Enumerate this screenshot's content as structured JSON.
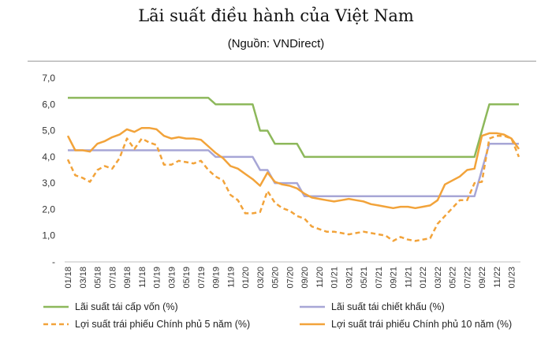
{
  "chart_data": {
    "type": "line",
    "title": "Lãi suất điều hành của Việt Nam",
    "subtitle": "(Nguồn: VNDirect)",
    "xlabel": "",
    "ylabel": "",
    "ylim": [
      0,
      7
    ],
    "y_ticks": [
      "-",
      "1,0",
      "2,0",
      "3,0",
      "4,0",
      "5,0",
      "6,0",
      "7,0"
    ],
    "grid": false,
    "legend": "bottom",
    "x_tick_labels": [
      "01/18",
      "03/18",
      "05/18",
      "07/18",
      "09/18",
      "11/18",
      "01/19",
      "03/19",
      "05/19",
      "07/19",
      "09/19",
      "11/19",
      "01/20",
      "03/20",
      "05/20",
      "07/20",
      "09/20",
      "11/20",
      "01/21",
      "03/21",
      "05/21",
      "07/21",
      "09/21",
      "11/21",
      "01/22",
      "03/22",
      "05/22",
      "07/22",
      "09/22",
      "11/22",
      "01/23"
    ],
    "x_start": "01/18",
    "x_end": "02/23",
    "series": [
      {
        "name": "Lãi suất tái cấp vốn (%)",
        "color": "#8db85b",
        "dash": "solid",
        "points": [
          [
            "01/18",
            6.25
          ],
          [
            "06/18",
            6.25
          ],
          [
            "12/18",
            6.25
          ],
          [
            "06/19",
            6.25
          ],
          [
            "08/19",
            6.25
          ],
          [
            "09/19",
            6.0
          ],
          [
            "12/19",
            6.0
          ],
          [
            "02/20",
            6.0
          ],
          [
            "03/20",
            5.0
          ],
          [
            "04/20",
            5.0
          ],
          [
            "05/20",
            4.5
          ],
          [
            "08/20",
            4.5
          ],
          [
            "09/20",
            4.0
          ],
          [
            "12/20",
            4.0
          ],
          [
            "06/21",
            4.0
          ],
          [
            "12/21",
            4.0
          ],
          [
            "06/22",
            4.0
          ],
          [
            "08/22",
            4.0
          ],
          [
            "09/22",
            5.0
          ],
          [
            "10/22",
            6.0
          ],
          [
            "11/22",
            6.0
          ],
          [
            "02/23",
            6.0
          ]
        ]
      },
      {
        "name": "Lãi suất tái chiết khấu (%)",
        "color": "#a7a6d6",
        "dash": "solid",
        "points": [
          [
            "01/18",
            4.25
          ],
          [
            "06/18",
            4.25
          ],
          [
            "12/18",
            4.25
          ],
          [
            "06/19",
            4.25
          ],
          [
            "08/19",
            4.25
          ],
          [
            "09/19",
            4.0
          ],
          [
            "12/19",
            4.0
          ],
          [
            "02/20",
            4.0
          ],
          [
            "03/20",
            3.5
          ],
          [
            "04/20",
            3.5
          ],
          [
            "05/20",
            3.0
          ],
          [
            "08/20",
            3.0
          ],
          [
            "09/20",
            2.5
          ],
          [
            "12/20",
            2.5
          ],
          [
            "06/21",
            2.5
          ],
          [
            "12/21",
            2.5
          ],
          [
            "06/22",
            2.5
          ],
          [
            "08/22",
            2.5
          ],
          [
            "09/22",
            3.5
          ],
          [
            "10/22",
            4.5
          ],
          [
            "11/22",
            4.5
          ],
          [
            "02/23",
            4.5
          ]
        ]
      },
      {
        "name": "Lợi suất trái phiếu Chính phủ 5 năm (%)",
        "color": "#f2a33a",
        "dash": "dashed",
        "points": [
          [
            "01/18",
            3.9
          ],
          [
            "02/18",
            3.3
          ],
          [
            "03/18",
            3.2
          ],
          [
            "04/18",
            3.05
          ],
          [
            "05/18",
            3.5
          ],
          [
            "06/18",
            3.65
          ],
          [
            "07/18",
            3.55
          ],
          [
            "08/18",
            3.95
          ],
          [
            "09/18",
            4.7
          ],
          [
            "10/18",
            4.3
          ],
          [
            "11/18",
            4.7
          ],
          [
            "12/18",
            4.55
          ],
          [
            "01/19",
            4.45
          ],
          [
            "02/19",
            3.7
          ],
          [
            "03/19",
            3.7
          ],
          [
            "04/19",
            3.85
          ],
          [
            "05/19",
            3.8
          ],
          [
            "06/19",
            3.75
          ],
          [
            "07/19",
            3.85
          ],
          [
            "08/19",
            3.5
          ],
          [
            "09/19",
            3.25
          ],
          [
            "10/19",
            3.1
          ],
          [
            "11/19",
            2.55
          ],
          [
            "12/19",
            2.35
          ],
          [
            "01/20",
            1.85
          ],
          [
            "02/20",
            1.85
          ],
          [
            "03/20",
            1.9
          ],
          [
            "04/20",
            2.7
          ],
          [
            "05/20",
            2.25
          ],
          [
            "06/20",
            2.05
          ],
          [
            "07/20",
            1.95
          ],
          [
            "08/20",
            1.75
          ],
          [
            "09/20",
            1.65
          ],
          [
            "10/20",
            1.35
          ],
          [
            "11/20",
            1.25
          ],
          [
            "12/20",
            1.15
          ],
          [
            "01/21",
            1.15
          ],
          [
            "02/21",
            1.1
          ],
          [
            "03/21",
            1.05
          ],
          [
            "04/21",
            1.1
          ],
          [
            "05/21",
            1.15
          ],
          [
            "06/21",
            1.1
          ],
          [
            "07/21",
            1.05
          ],
          [
            "08/21",
            1.0
          ],
          [
            "09/21",
            0.8
          ],
          [
            "10/21",
            0.95
          ],
          [
            "11/21",
            0.85
          ],
          [
            "12/21",
            0.8
          ],
          [
            "01/22",
            0.85
          ],
          [
            "02/22",
            0.9
          ],
          [
            "03/22",
            1.45
          ],
          [
            "04/22",
            1.75
          ],
          [
            "05/22",
            2.05
          ],
          [
            "06/22",
            2.35
          ],
          [
            "07/22",
            2.35
          ],
          [
            "08/22",
            3.0
          ],
          [
            "09/22",
            3.05
          ],
          [
            "10/22",
            4.7
          ],
          [
            "11/22",
            4.8
          ],
          [
            "12/22",
            4.8
          ],
          [
            "01/23",
            4.7
          ],
          [
            "02/23",
            4.0
          ]
        ]
      },
      {
        "name": "Lợi suất trái phiếu Chính phủ 10 năm (%)",
        "color": "#f2a33a",
        "dash": "solid",
        "points": [
          [
            "01/18",
            4.8
          ],
          [
            "02/18",
            4.25
          ],
          [
            "03/18",
            4.25
          ],
          [
            "04/18",
            4.2
          ],
          [
            "05/18",
            4.5
          ],
          [
            "06/18",
            4.6
          ],
          [
            "07/18",
            4.75
          ],
          [
            "08/18",
            4.85
          ],
          [
            "09/18",
            5.05
          ],
          [
            "10/18",
            4.95
          ],
          [
            "11/18",
            5.1
          ],
          [
            "12/18",
            5.1
          ],
          [
            "01/19",
            5.05
          ],
          [
            "02/19",
            4.8
          ],
          [
            "03/19",
            4.7
          ],
          [
            "04/19",
            4.75
          ],
          [
            "05/19",
            4.7
          ],
          [
            "06/19",
            4.7
          ],
          [
            "07/19",
            4.65
          ],
          [
            "08/19",
            4.4
          ],
          [
            "09/19",
            4.15
          ],
          [
            "10/19",
            3.95
          ],
          [
            "11/19",
            3.65
          ],
          [
            "12/19",
            3.55
          ],
          [
            "01/20",
            3.35
          ],
          [
            "02/20",
            3.15
          ],
          [
            "03/20",
            2.9
          ],
          [
            "04/20",
            3.4
          ],
          [
            "05/20",
            3.05
          ],
          [
            "06/20",
            2.95
          ],
          [
            "07/20",
            2.9
          ],
          [
            "08/20",
            2.8
          ],
          [
            "09/20",
            2.6
          ],
          [
            "10/20",
            2.45
          ],
          [
            "11/20",
            2.4
          ],
          [
            "12/20",
            2.35
          ],
          [
            "01/21",
            2.3
          ],
          [
            "02/21",
            2.35
          ],
          [
            "03/21",
            2.4
          ],
          [
            "04/21",
            2.35
          ],
          [
            "05/21",
            2.3
          ],
          [
            "06/21",
            2.2
          ],
          [
            "07/21",
            2.15
          ],
          [
            "08/21",
            2.1
          ],
          [
            "09/21",
            2.05
          ],
          [
            "10/21",
            2.1
          ],
          [
            "11/21",
            2.1
          ],
          [
            "12/21",
            2.05
          ],
          [
            "01/22",
            2.1
          ],
          [
            "02/22",
            2.15
          ],
          [
            "03/22",
            2.35
          ],
          [
            "04/22",
            2.95
          ],
          [
            "05/22",
            3.1
          ],
          [
            "06/22",
            3.25
          ],
          [
            "07/22",
            3.5
          ],
          [
            "08/22",
            3.55
          ],
          [
            "09/22",
            4.8
          ],
          [
            "10/22",
            4.9
          ],
          [
            "11/22",
            4.9
          ],
          [
            "12/22",
            4.85
          ],
          [
            "01/23",
            4.7
          ],
          [
            "02/23",
            4.3
          ]
        ]
      }
    ]
  }
}
